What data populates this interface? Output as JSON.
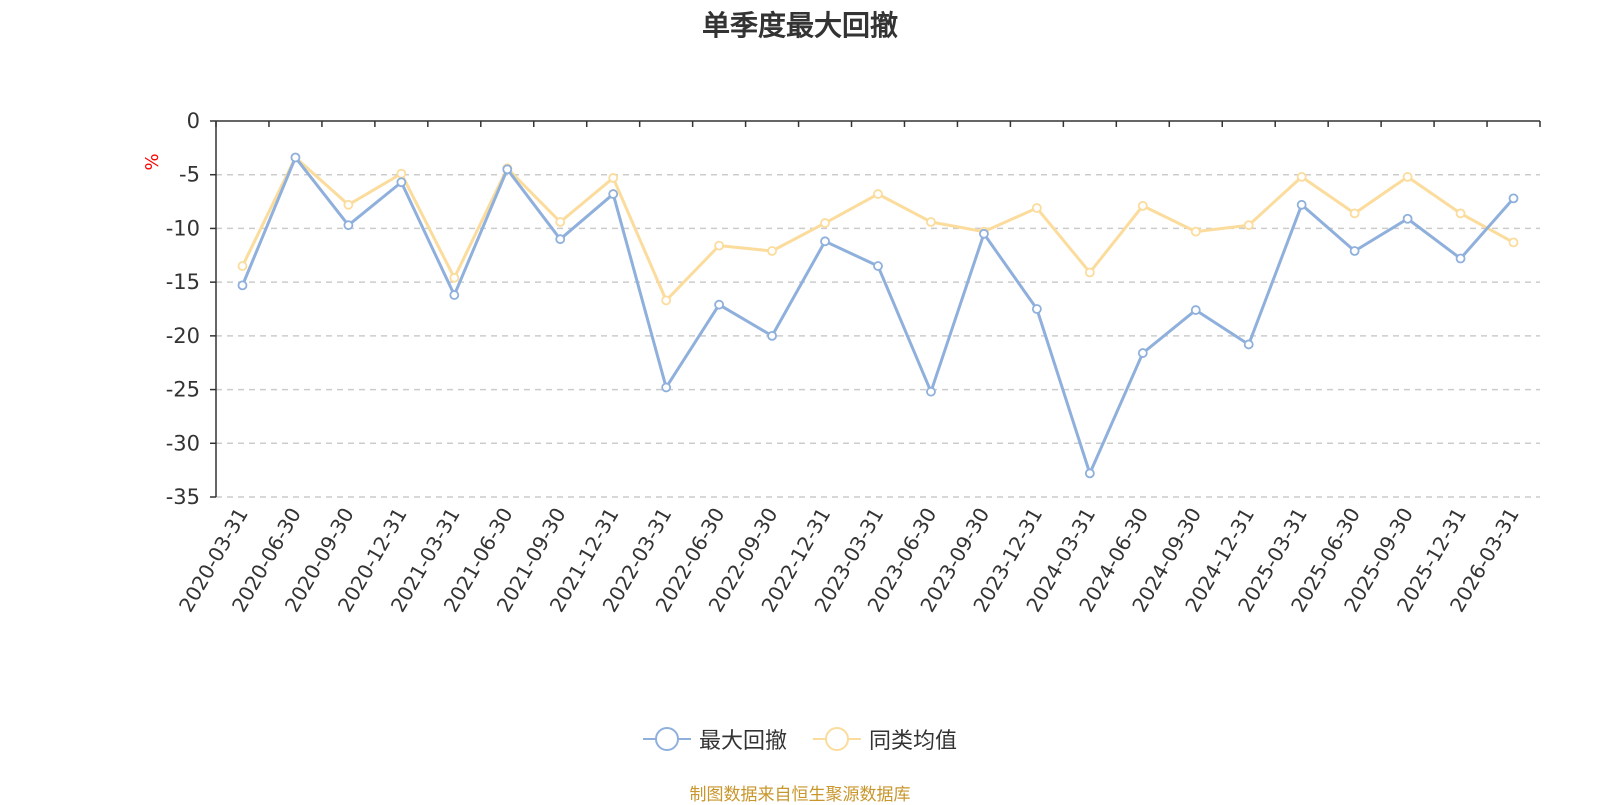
{
  "colors": {
    "series1": "#8fb0dc",
    "series2": "#fbdc9c",
    "unit": "#ff0000",
    "source": "#c9962c",
    "axis": "#333333",
    "grid": "#cccccc",
    "text": "#333333"
  },
  "footer": {
    "source": "制图数据来自恒生聚源数据库"
  },
  "chart_data": {
    "type": "line",
    "title": "单季度最大回撤",
    "ylabel": "%",
    "ylim": [
      -35,
      0
    ],
    "yticks": [
      0,
      -5,
      -10,
      -15,
      -20,
      -25,
      -30,
      -35
    ],
    "grid": true,
    "legend": "bottom-center",
    "categories": [
      "2020-03-31",
      "2020-06-30",
      "2020-09-30",
      "2020-12-31",
      "2021-03-31",
      "2021-06-30",
      "2021-09-30",
      "2021-12-31",
      "2022-03-31",
      "2022-06-30",
      "2022-09-30",
      "2022-12-31",
      "2023-03-31",
      "2023-06-30",
      "2023-09-30",
      "2023-12-31",
      "2024-03-31",
      "2024-06-30",
      "2024-09-30",
      "2024-12-31",
      "2025-03-31",
      "2025-06-30",
      "2025-09-30",
      "2025-12-31",
      "2026-03-31"
    ],
    "series": [
      {
        "name": "最大回撤",
        "values": [
          -15.3,
          -3.4,
          -9.7,
          -5.7,
          -16.2,
          -4.5,
          -11.0,
          -6.8,
          -24.8,
          -17.1,
          -20.0,
          -11.2,
          -13.5,
          -25.2,
          -10.5,
          -17.5,
          -32.8,
          -21.6,
          -17.6,
          -20.8,
          -7.8,
          -12.1,
          -9.1,
          -12.8,
          -7.2
        ]
      },
      {
        "name": "同类均值",
        "values": [
          -13.5,
          -3.4,
          -7.8,
          -4.9,
          -14.6,
          -4.4,
          -9.4,
          -5.3,
          -16.7,
          -11.6,
          -12.1,
          -9.5,
          -6.8,
          -9.4,
          -10.3,
          -8.1,
          -14.1,
          -7.9,
          -10.3,
          -9.7,
          -5.2,
          -8.6,
          -5.2,
          -8.6,
          -11.3
        ]
      }
    ]
  }
}
